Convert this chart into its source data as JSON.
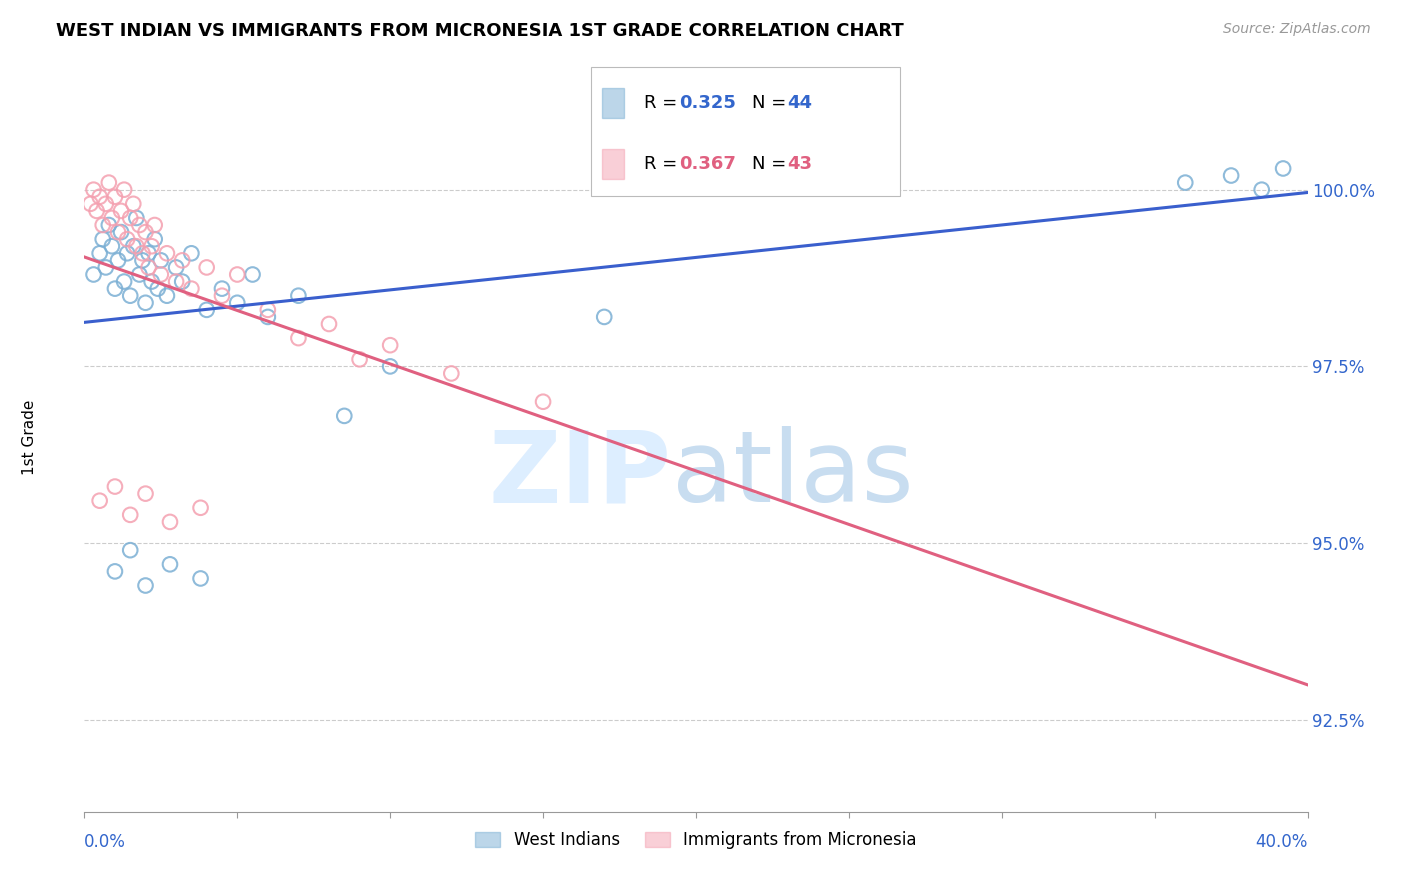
{
  "title": "WEST INDIAN VS IMMIGRANTS FROM MICRONESIA 1ST GRADE CORRELATION CHART",
  "source": "Source: ZipAtlas.com",
  "ylabel": "1st Grade",
  "ytick_values": [
    92.5,
    95.0,
    97.5,
    100.0
  ],
  "xlim": [
    0.0,
    40.0
  ],
  "ylim": [
    91.2,
    101.8
  ],
  "legend1_R": "0.325",
  "legend1_N": "44",
  "legend2_R": "0.367",
  "legend2_N": "43",
  "blue_color": "#7bafd4",
  "pink_color": "#f4a0b0",
  "line_blue": "#3a5fcd",
  "line_pink": "#e06080",
  "west_indians_x": [
    0.3,
    0.5,
    0.6,
    0.7,
    0.8,
    0.9,
    1.0,
    1.1,
    1.2,
    1.3,
    1.4,
    1.5,
    1.6,
    1.7,
    1.8,
    1.9,
    2.0,
    2.1,
    2.2,
    2.3,
    2.4,
    2.5,
    2.7,
    3.0,
    3.2,
    3.5,
    4.0,
    4.5,
    5.0,
    5.5,
    6.0,
    7.0,
    8.5,
    10.0,
    17.0,
    36.0,
    37.5,
    38.5,
    39.2,
    1.0,
    1.5,
    2.0,
    2.8,
    3.8
  ],
  "west_indians_y": [
    98.8,
    99.1,
    99.3,
    98.9,
    99.5,
    99.2,
    98.6,
    99.0,
    99.4,
    98.7,
    99.1,
    98.5,
    99.2,
    99.6,
    98.8,
    99.0,
    98.4,
    99.1,
    98.7,
    99.3,
    98.6,
    99.0,
    98.5,
    98.9,
    98.7,
    99.1,
    98.3,
    98.6,
    98.4,
    98.8,
    98.2,
    98.5,
    96.8,
    97.5,
    98.2,
    100.1,
    100.2,
    100.0,
    100.3,
    94.6,
    94.9,
    94.4,
    94.7,
    94.5
  ],
  "micronesia_x": [
    0.2,
    0.3,
    0.4,
    0.5,
    0.6,
    0.7,
    0.8,
    0.9,
    1.0,
    1.1,
    1.2,
    1.3,
    1.4,
    1.5,
    1.6,
    1.7,
    1.8,
    1.9,
    2.0,
    2.1,
    2.2,
    2.3,
    2.5,
    2.7,
    3.0,
    3.2,
    3.5,
    4.0,
    4.5,
    5.0,
    6.0,
    7.0,
    8.0,
    9.0,
    10.0,
    12.0,
    15.0,
    0.5,
    1.0,
    1.5,
    2.0,
    2.8,
    3.8
  ],
  "micronesia_y": [
    99.8,
    100.0,
    99.7,
    99.9,
    99.5,
    99.8,
    100.1,
    99.6,
    99.9,
    99.4,
    99.7,
    100.0,
    99.3,
    99.6,
    99.8,
    99.2,
    99.5,
    99.1,
    99.4,
    98.9,
    99.2,
    99.5,
    98.8,
    99.1,
    98.7,
    99.0,
    98.6,
    98.9,
    98.5,
    98.8,
    98.3,
    97.9,
    98.1,
    97.6,
    97.8,
    97.4,
    97.0,
    95.6,
    95.8,
    95.4,
    95.7,
    95.3,
    95.5
  ]
}
